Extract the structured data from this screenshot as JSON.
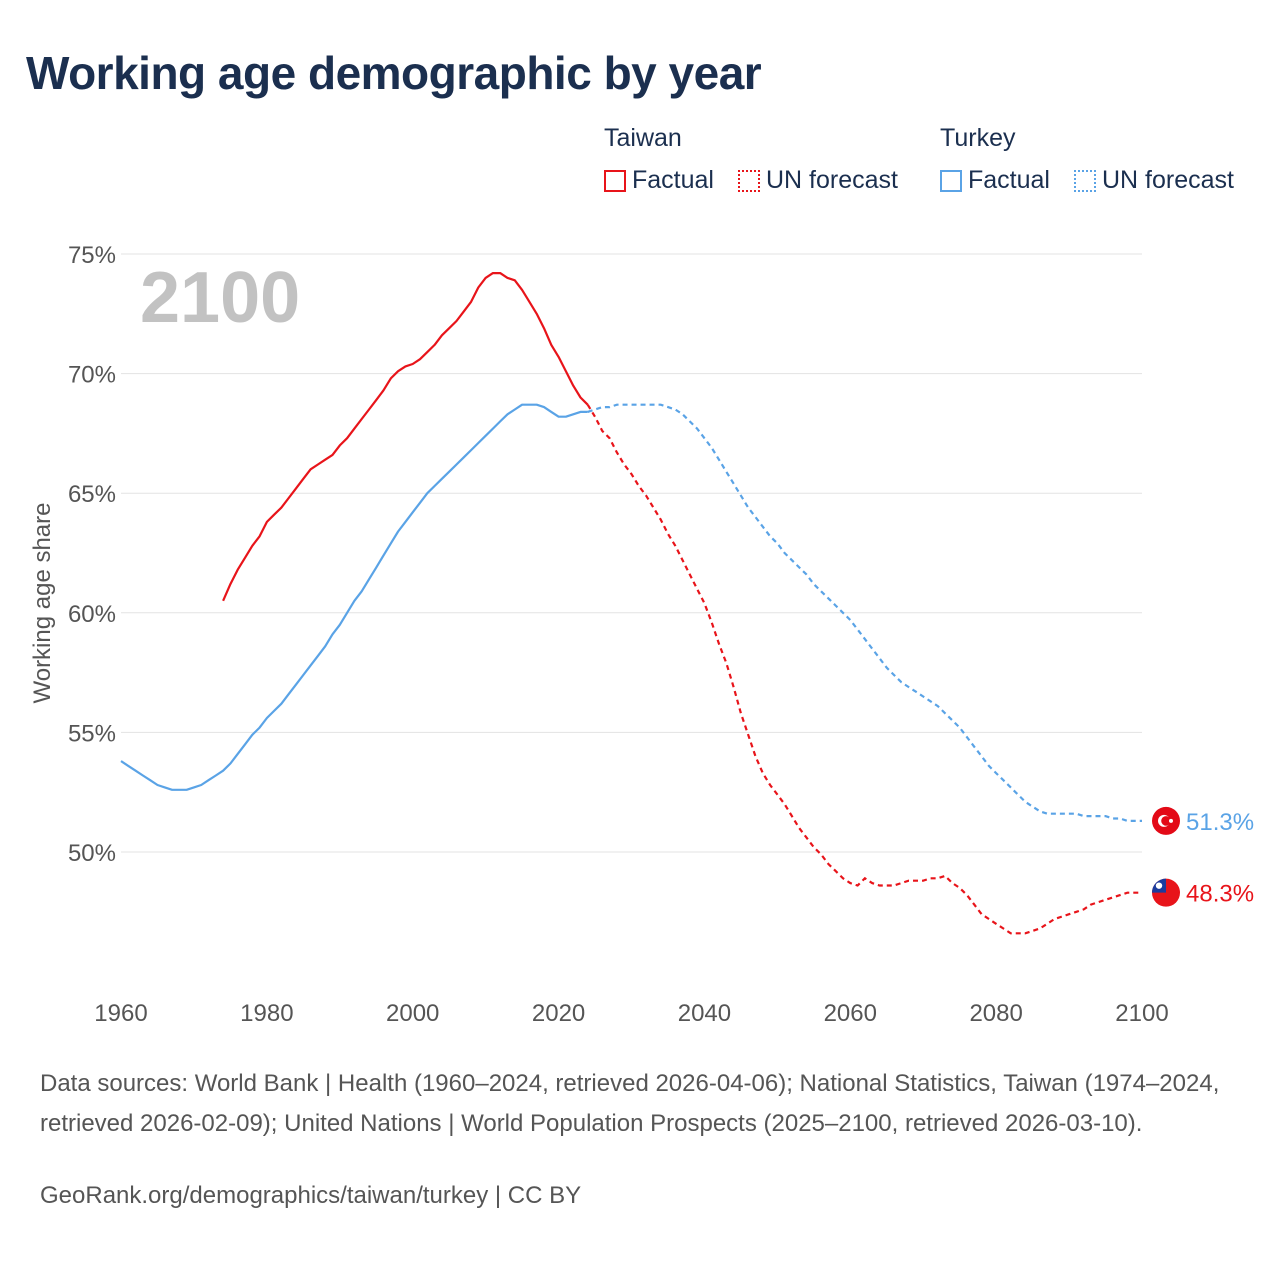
{
  "title": "Working age demographic by year",
  "legend": {
    "groups": [
      {
        "name": "Taiwan",
        "factual_label": "Factual",
        "forecast_label": "UN forecast",
        "color": "#e8141a"
      },
      {
        "name": "Turkey",
        "factual_label": "Factual",
        "forecast_label": "UN forecast",
        "color": "#5aa3e6"
      }
    ]
  },
  "footer": {
    "sources": "Data sources: World Bank | Health (1960–2024, retrieved 2026-04-06); National Statistics, Taiwan (1974–2024, retrieved 2026-02-09); United Nations | World Population Prospects (2025–2100, retrieved 2026-03-10).",
    "url": "GeoRank.org/demographics/taiwan/turkey | CC BY"
  },
  "chart_data": {
    "type": "line",
    "title": "Working age demographic by year",
    "ylabel": "Working age share",
    "xlabel": "",
    "year_watermark": "2100",
    "xlim": [
      1960,
      2100
    ],
    "ylim": [
      44.3,
      75
    ],
    "x_ticks": [
      "1960",
      "1980",
      "2000",
      "2020",
      "2040",
      "2060",
      "2080",
      "2100"
    ],
    "x_tick_values": [
      1960,
      1980,
      2000,
      2020,
      2040,
      2060,
      2080,
      2100
    ],
    "y_ticks": [
      "50%",
      "55%",
      "60%",
      "65%",
      "70%",
      "75%"
    ],
    "y_tick_values": [
      50,
      55,
      60,
      65,
      70,
      75
    ],
    "grid": true,
    "series": [
      {
        "name": "Taiwan",
        "color": "#e8141a",
        "end_label": "48.3%",
        "flag": "taiwan-flag",
        "factual": [
          [
            1974,
            60.5
          ],
          [
            1975,
            61.2
          ],
          [
            1976,
            61.8
          ],
          [
            1977,
            62.3
          ],
          [
            1978,
            62.8
          ],
          [
            1979,
            63.2
          ],
          [
            1980,
            63.8
          ],
          [
            1981,
            64.1
          ],
          [
            1982,
            64.4
          ],
          [
            1983,
            64.8
          ],
          [
            1984,
            65.2
          ],
          [
            1985,
            65.6
          ],
          [
            1986,
            66.0
          ],
          [
            1987,
            66.2
          ],
          [
            1988,
            66.4
          ],
          [
            1989,
            66.6
          ],
          [
            1990,
            67.0
          ],
          [
            1991,
            67.3
          ],
          [
            1992,
            67.7
          ],
          [
            1993,
            68.1
          ],
          [
            1994,
            68.5
          ],
          [
            1995,
            68.9
          ],
          [
            1996,
            69.3
          ],
          [
            1997,
            69.8
          ],
          [
            1998,
            70.1
          ],
          [
            1999,
            70.3
          ],
          [
            2000,
            70.4
          ],
          [
            2001,
            70.6
          ],
          [
            2002,
            70.9
          ],
          [
            2003,
            71.2
          ],
          [
            2004,
            71.6
          ],
          [
            2005,
            71.9
          ],
          [
            2006,
            72.2
          ],
          [
            2007,
            72.6
          ],
          [
            2008,
            73.0
          ],
          [
            2009,
            73.6
          ],
          [
            2010,
            74.0
          ],
          [
            2011,
            74.2
          ],
          [
            2012,
            74.2
          ],
          [
            2013,
            74.0
          ],
          [
            2014,
            73.9
          ],
          [
            2015,
            73.5
          ],
          [
            2016,
            73.0
          ],
          [
            2017,
            72.5
          ],
          [
            2018,
            71.9
          ],
          [
            2019,
            71.2
          ],
          [
            2020,
            70.7
          ],
          [
            2021,
            70.1
          ],
          [
            2022,
            69.5
          ],
          [
            2023,
            69.0
          ],
          [
            2024,
            68.7
          ]
        ],
        "forecast": [
          [
            2024,
            68.7
          ],
          [
            2025,
            68.2
          ],
          [
            2026,
            67.6
          ],
          [
            2027,
            67.3
          ],
          [
            2028,
            66.7
          ],
          [
            2029,
            66.2
          ],
          [
            2030,
            65.8
          ],
          [
            2031,
            65.3
          ],
          [
            2032,
            64.9
          ],
          [
            2033,
            64.4
          ],
          [
            2034,
            63.9
          ],
          [
            2035,
            63.3
          ],
          [
            2036,
            62.8
          ],
          [
            2037,
            62.2
          ],
          [
            2038,
            61.6
          ],
          [
            2039,
            61.0
          ],
          [
            2040,
            60.4
          ],
          [
            2041,
            59.6
          ],
          [
            2042,
            58.7
          ],
          [
            2043,
            57.9
          ],
          [
            2044,
            56.9
          ],
          [
            2045,
            55.8
          ],
          [
            2046,
            54.9
          ],
          [
            2047,
            54.0
          ],
          [
            2048,
            53.3
          ],
          [
            2049,
            52.8
          ],
          [
            2050,
            52.4
          ],
          [
            2051,
            52.0
          ],
          [
            2052,
            51.5
          ],
          [
            2053,
            51.0
          ],
          [
            2054,
            50.6
          ],
          [
            2055,
            50.2
          ],
          [
            2056,
            49.9
          ],
          [
            2057,
            49.5
          ],
          [
            2058,
            49.2
          ],
          [
            2059,
            48.9
          ],
          [
            2060,
            48.7
          ],
          [
            2061,
            48.6
          ],
          [
            2062,
            48.9
          ],
          [
            2063,
            48.7
          ],
          [
            2064,
            48.6
          ],
          [
            2065,
            48.6
          ],
          [
            2066,
            48.6
          ],
          [
            2067,
            48.7
          ],
          [
            2068,
            48.8
          ],
          [
            2069,
            48.8
          ],
          [
            2070,
            48.8
          ],
          [
            2071,
            48.9
          ],
          [
            2072,
            48.9
          ],
          [
            2073,
            49.0
          ],
          [
            2074,
            48.7
          ],
          [
            2075,
            48.5
          ],
          [
            2076,
            48.2
          ],
          [
            2077,
            47.8
          ],
          [
            2078,
            47.4
          ],
          [
            2079,
            47.2
          ],
          [
            2080,
            47.0
          ],
          [
            2081,
            46.8
          ],
          [
            2082,
            46.6
          ],
          [
            2083,
            46.6
          ],
          [
            2084,
            46.6
          ],
          [
            2085,
            46.7
          ],
          [
            2086,
            46.8
          ],
          [
            2087,
            47.0
          ],
          [
            2088,
            47.2
          ],
          [
            2089,
            47.3
          ],
          [
            2090,
            47.4
          ],
          [
            2091,
            47.5
          ],
          [
            2092,
            47.6
          ],
          [
            2093,
            47.8
          ],
          [
            2094,
            47.9
          ],
          [
            2095,
            48.0
          ],
          [
            2096,
            48.1
          ],
          [
            2097,
            48.2
          ],
          [
            2098,
            48.3
          ],
          [
            2099,
            48.3
          ],
          [
            2100,
            48.3
          ]
        ]
      },
      {
        "name": "Turkey",
        "color": "#5aa3e6",
        "end_label": "51.3%",
        "flag": "turkey-flag",
        "factual": [
          [
            1960,
            53.8
          ],
          [
            1961,
            53.6
          ],
          [
            1962,
            53.4
          ],
          [
            1963,
            53.2
          ],
          [
            1964,
            53.0
          ],
          [
            1965,
            52.8
          ],
          [
            1966,
            52.7
          ],
          [
            1967,
            52.6
          ],
          [
            1968,
            52.6
          ],
          [
            1969,
            52.6
          ],
          [
            1970,
            52.7
          ],
          [
            1971,
            52.8
          ],
          [
            1972,
            53.0
          ],
          [
            1973,
            53.2
          ],
          [
            1974,
            53.4
          ],
          [
            1975,
            53.7
          ],
          [
            1976,
            54.1
          ],
          [
            1977,
            54.5
          ],
          [
            1978,
            54.9
          ],
          [
            1979,
            55.2
          ],
          [
            1980,
            55.6
          ],
          [
            1981,
            55.9
          ],
          [
            1982,
            56.2
          ],
          [
            1983,
            56.6
          ],
          [
            1984,
            57.0
          ],
          [
            1985,
            57.4
          ],
          [
            1986,
            57.8
          ],
          [
            1987,
            58.2
          ],
          [
            1988,
            58.6
          ],
          [
            1989,
            59.1
          ],
          [
            1990,
            59.5
          ],
          [
            1991,
            60.0
          ],
          [
            1992,
            60.5
          ],
          [
            1993,
            60.9
          ],
          [
            1994,
            61.4
          ],
          [
            1995,
            61.9
          ],
          [
            1996,
            62.4
          ],
          [
            1997,
            62.9
          ],
          [
            1998,
            63.4
          ],
          [
            1999,
            63.8
          ],
          [
            2000,
            64.2
          ],
          [
            2001,
            64.6
          ],
          [
            2002,
            65.0
          ],
          [
            2003,
            65.3
          ],
          [
            2004,
            65.6
          ],
          [
            2005,
            65.9
          ],
          [
            2006,
            66.2
          ],
          [
            2007,
            66.5
          ],
          [
            2008,
            66.8
          ],
          [
            2009,
            67.1
          ],
          [
            2010,
            67.4
          ],
          [
            2011,
            67.7
          ],
          [
            2012,
            68.0
          ],
          [
            2013,
            68.3
          ],
          [
            2014,
            68.5
          ],
          [
            2015,
            68.7
          ],
          [
            2016,
            68.7
          ],
          [
            2017,
            68.7
          ],
          [
            2018,
            68.6
          ],
          [
            2019,
            68.4
          ],
          [
            2020,
            68.2
          ],
          [
            2021,
            68.2
          ],
          [
            2022,
            68.3
          ],
          [
            2023,
            68.4
          ],
          [
            2024,
            68.4
          ]
        ],
        "forecast": [
          [
            2024,
            68.4
          ],
          [
            2025,
            68.5
          ],
          [
            2026,
            68.6
          ],
          [
            2027,
            68.6
          ],
          [
            2028,
            68.7
          ],
          [
            2029,
            68.7
          ],
          [
            2030,
            68.7
          ],
          [
            2031,
            68.7
          ],
          [
            2032,
            68.7
          ],
          [
            2033,
            68.7
          ],
          [
            2034,
            68.7
          ],
          [
            2035,
            68.6
          ],
          [
            2036,
            68.5
          ],
          [
            2037,
            68.3
          ],
          [
            2038,
            68.0
          ],
          [
            2039,
            67.7
          ],
          [
            2040,
            67.3
          ],
          [
            2041,
            66.9
          ],
          [
            2042,
            66.4
          ],
          [
            2043,
            65.9
          ],
          [
            2044,
            65.4
          ],
          [
            2045,
            64.9
          ],
          [
            2046,
            64.4
          ],
          [
            2047,
            64.0
          ],
          [
            2048,
            63.6
          ],
          [
            2049,
            63.2
          ],
          [
            2050,
            62.9
          ],
          [
            2051,
            62.5
          ],
          [
            2052,
            62.2
          ],
          [
            2053,
            61.9
          ],
          [
            2054,
            61.6
          ],
          [
            2055,
            61.2
          ],
          [
            2056,
            60.9
          ],
          [
            2057,
            60.6
          ],
          [
            2058,
            60.3
          ],
          [
            2059,
            60.0
          ],
          [
            2060,
            59.7
          ],
          [
            2061,
            59.3
          ],
          [
            2062,
            58.9
          ],
          [
            2063,
            58.5
          ],
          [
            2064,
            58.1
          ],
          [
            2065,
            57.7
          ],
          [
            2066,
            57.4
          ],
          [
            2067,
            57.1
          ],
          [
            2068,
            56.9
          ],
          [
            2069,
            56.7
          ],
          [
            2070,
            56.5
          ],
          [
            2071,
            56.3
          ],
          [
            2072,
            56.1
          ],
          [
            2073,
            55.8
          ],
          [
            2074,
            55.5
          ],
          [
            2075,
            55.2
          ],
          [
            2076,
            54.8
          ],
          [
            2077,
            54.4
          ],
          [
            2078,
            54.0
          ],
          [
            2079,
            53.6
          ],
          [
            2080,
            53.3
          ],
          [
            2081,
            53.0
          ],
          [
            2082,
            52.7
          ],
          [
            2083,
            52.4
          ],
          [
            2084,
            52.1
          ],
          [
            2085,
            51.9
          ],
          [
            2086,
            51.7
          ],
          [
            2087,
            51.6
          ],
          [
            2088,
            51.6
          ],
          [
            2089,
            51.6
          ],
          [
            2090,
            51.6
          ],
          [
            2091,
            51.6
          ],
          [
            2092,
            51.5
          ],
          [
            2093,
            51.5
          ],
          [
            2094,
            51.5
          ],
          [
            2095,
            51.5
          ],
          [
            2096,
            51.4
          ],
          [
            2097,
            51.4
          ],
          [
            2098,
            51.3
          ],
          [
            2099,
            51.3
          ],
          [
            2100,
            51.3
          ]
        ]
      }
    ]
  }
}
